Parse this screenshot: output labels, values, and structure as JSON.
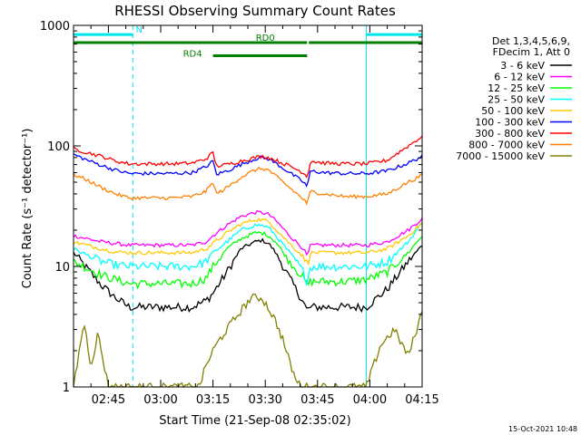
{
  "chart_data": {
    "type": "line",
    "title": "RHESSI Observing Summary Count Rates",
    "xlabel": "Start Time (21-Sep-08 02:35:02)",
    "ylabel": "Count Rate (s⁻¹ detector⁻¹)",
    "yscale": "log",
    "ylim": [
      1,
      1000
    ],
    "xlim_minutes": [
      0,
      100
    ],
    "x_tick_labels": [
      "02:45",
      "03:00",
      "03:15",
      "03:30",
      "03:45",
      "04:00",
      "04:15"
    ],
    "x_tick_minutes": [
      10,
      25,
      40,
      55,
      70,
      85,
      100
    ],
    "y_tick_labels": [
      "1",
      "10",
      "100",
      "1000"
    ],
    "y_tick_values": [
      1,
      10,
      100,
      1000
    ],
    "timestamp": "15-Oct-2021 10:48",
    "legend_header": [
      "Det 1,3,4,5,6,9,",
      "FDecim 1, Att 0"
    ],
    "series": [
      {
        "name": "3 - 6 keV",
        "color": "#000000",
        "x": [
          0,
          8,
          12,
          16,
          22,
          28,
          34,
          38,
          40,
          44,
          48,
          52,
          54,
          56,
          58,
          62,
          66,
          67,
          68,
          72,
          78,
          84,
          90,
          96,
          100
        ],
        "y": [
          13,
          7,
          5.5,
          4.6,
          4.6,
          4.6,
          4.6,
          5.2,
          6,
          9,
          14,
          16,
          16.5,
          15.5,
          13,
          8,
          5,
          4.3,
          4.6,
          4.6,
          4.6,
          4.6,
          6.5,
          11,
          15
        ]
      },
      {
        "name": "6 - 12 keV",
        "color": "#ff00ff",
        "x": [
          0,
          8,
          12,
          16,
          22,
          28,
          34,
          38,
          40,
          44,
          48,
          52,
          54,
          56,
          58,
          62,
          66,
          67,
          68,
          72,
          78,
          84,
          90,
          96,
          100
        ],
        "y": [
          18,
          16,
          15.5,
          15,
          15,
          15,
          15,
          16,
          18,
          22,
          26,
          28,
          28,
          27,
          24,
          18,
          14,
          12,
          15,
          15,
          15,
          15,
          16,
          20,
          25
        ]
      },
      {
        "name": "12 - 25 keV",
        "color": "#00ff00",
        "x": [
          0,
          8,
          12,
          16,
          22,
          28,
          34,
          38,
          40,
          44,
          48,
          52,
          54,
          56,
          58,
          62,
          66,
          67,
          68,
          72,
          78,
          84,
          90,
          96,
          100
        ],
        "y": [
          11,
          8.5,
          7.8,
          7.2,
          7.2,
          7.2,
          7.2,
          8,
          10,
          14,
          17,
          19,
          19,
          18,
          16,
          11,
          8,
          7,
          7.5,
          7.5,
          7.5,
          7.8,
          9,
          13,
          18
        ]
      },
      {
        "name": "25 - 50 keV",
        "color": "#00ffff",
        "x": [
          0,
          8,
          12,
          16,
          22,
          28,
          34,
          38,
          40,
          44,
          48,
          52,
          54,
          56,
          58,
          62,
          66,
          67,
          68,
          72,
          78,
          84,
          90,
          96,
          100
        ],
        "y": [
          14,
          11,
          10.3,
          10,
          10,
          10,
          10,
          11,
          13,
          16,
          20,
          22,
          22,
          21,
          18,
          13,
          9,
          7.5,
          10,
          10,
          10,
          10,
          11,
          16,
          23
        ]
      },
      {
        "name": "50 - 100 keV",
        "color": "#ffc800",
        "x": [
          0,
          8,
          12,
          16,
          22,
          28,
          34,
          38,
          40,
          44,
          48,
          52,
          54,
          56,
          58,
          62,
          66,
          67,
          68,
          72,
          78,
          84,
          90,
          96,
          100
        ],
        "y": [
          16,
          14,
          13.2,
          13,
          13,
          13,
          13,
          14,
          15.5,
          19,
          22.5,
          24.5,
          24.5,
          23.5,
          20.5,
          15.5,
          12,
          10.5,
          13,
          13,
          13,
          13,
          14,
          18,
          23
        ]
      },
      {
        "name": "100 - 300 keV",
        "color": "#0000ff",
        "x": [
          0,
          4,
          8,
          12,
          16,
          22,
          28,
          34,
          38,
          40,
          41,
          44,
          48,
          52,
          54,
          56,
          58,
          62,
          66,
          67,
          68,
          72,
          78,
          84,
          90,
          96,
          100
        ],
        "y": [
          85,
          76,
          69,
          63,
          59,
          59,
          59,
          60,
          67,
          75,
          58,
          62,
          70,
          78,
          80,
          78,
          72,
          60,
          50,
          46,
          62,
          60,
          59,
          59,
          62,
          72,
          82
        ]
      },
      {
        "name": "300 - 800 keV",
        "color": "#ff0000",
        "x": [
          0,
          4,
          8,
          12,
          16,
          22,
          28,
          34,
          38,
          40,
          41,
          44,
          48,
          52,
          54,
          56,
          58,
          62,
          66,
          67,
          68,
          72,
          78,
          84,
          90,
          96,
          100
        ],
        "y": [
          95,
          88,
          82,
          75,
          71,
          71,
          71,
          72,
          78,
          88,
          68,
          70,
          75,
          80,
          82,
          80,
          76,
          68,
          60,
          55,
          75,
          72,
          71,
          71,
          76,
          100,
          120
        ]
      },
      {
        "name": "800 - 7000 keV",
        "color": "#ff8000",
        "x": [
          0,
          4,
          8,
          12,
          16,
          22,
          28,
          34,
          38,
          40,
          41,
          44,
          48,
          52,
          54,
          56,
          58,
          62,
          66,
          67,
          68,
          72,
          78,
          84,
          90,
          96,
          100
        ],
        "y": [
          58,
          52,
          45,
          40,
          37,
          37,
          37,
          38,
          42,
          50,
          40,
          45,
          55,
          63,
          65,
          63,
          56,
          45,
          36,
          33,
          42,
          40,
          38,
          38,
          40,
          50,
          57
        ]
      },
      {
        "name": "7000 - 15000 keV",
        "color": "#808000",
        "x": [
          0,
          3,
          5,
          7,
          10,
          14,
          18,
          24,
          30,
          36,
          38,
          40,
          42,
          45,
          48,
          51,
          54,
          56,
          58,
          60,
          62,
          64,
          66,
          67,
          68,
          72,
          78,
          84,
          88,
          92,
          96,
          100
        ],
        "y": [
          1,
          3.5,
          1.5,
          2.8,
          1,
          1,
          1,
          1,
          1,
          1,
          1.5,
          2,
          2.5,
          3.3,
          4.3,
          5.5,
          5.5,
          4.5,
          3.5,
          2.5,
          1.6,
          1.1,
          1,
          1,
          1,
          1,
          1,
          1,
          2.2,
          3,
          1.8,
          4.2
        ]
      }
    ],
    "annotations": [
      {
        "label": "N",
        "color": "#00e5ee",
        "x_start": 0,
        "x_end": 100,
        "y": 840,
        "gap": [
          17,
          84
        ]
      },
      {
        "label": "RD0",
        "color": "#008000",
        "x_start": 0,
        "x_end": 100,
        "y": 720,
        "gap": [
          67,
          67.5
        ]
      },
      {
        "label": "RD4",
        "color": "#008000",
        "x_start": 40,
        "x_end": 67,
        "y": 560
      }
    ],
    "vertical_markers": [
      {
        "x": 0,
        "style": "solid",
        "color": "#00e5ee"
      },
      {
        "x": 17,
        "style": "dashed",
        "color": "#00e5ee"
      },
      {
        "x": 84,
        "style": "solid",
        "color": "#00e5ee"
      },
      {
        "x": 100,
        "style": "dashed",
        "color": "#00e5ee"
      }
    ]
  }
}
